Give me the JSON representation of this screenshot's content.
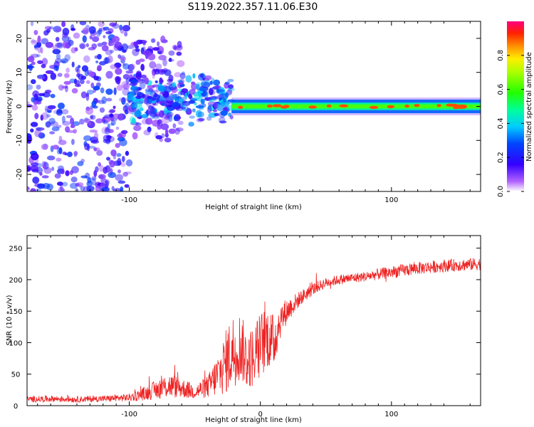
{
  "figure_title": "S119.2022.357.11.06.E30",
  "colors": {
    "snr_line": "#ee2222",
    "axis": "#000000"
  },
  "chart_data": [
    {
      "type": "heatmap",
      "xlabel": "Height of straight line (km)",
      "ylabel": "Frequency (Hz)",
      "xlim": [
        -178,
        168
      ],
      "ylim": [
        -25,
        25
      ],
      "x_ticks": [
        -100,
        0,
        100
      ],
      "x_tick_labels": [
        "-100",
        "",
        "100"
      ],
      "y_ticks": [
        -20,
        -10,
        0,
        10,
        20
      ],
      "y_tick_labels": [
        "-20",
        "-10",
        "0",
        "10",
        "20"
      ],
      "colorbar": {
        "label": "Normalized spectral amplitude",
        "range": [
          0,
          1
        ],
        "ticks": [
          0.0,
          0.2,
          0.4,
          0.6,
          0.8
        ],
        "tick_labels": [
          "0.0",
          "0.2",
          "0.4",
          "0.6",
          "0.8"
        ],
        "colormap": "rainbow"
      },
      "features": [
        {
          "x_range": [
            -178,
            -100
          ],
          "freq_range": [
            -25,
            25
          ],
          "amplitude": 0.2,
          "description": "scattered"
        },
        {
          "x_range": [
            -100,
            -60
          ],
          "freq_range": [
            -10,
            20
          ],
          "amplitude": 0.15,
          "description": "sparse"
        },
        {
          "x_range": [
            -100,
            -22
          ],
          "freq_range": [
            -5,
            10
          ],
          "amplitude": 0.3,
          "description": "band"
        },
        {
          "x_range": [
            -22,
            168
          ],
          "freq_range": [
            -2,
            2
          ],
          "amplitude": 0.55,
          "description": "narrow band"
        }
      ]
    },
    {
      "type": "line",
      "xlabel": "Height of straight line (km)",
      "ylabel": "SNR (10 * v/v)",
      "xlim": [
        -178,
        168
      ],
      "ylim": [
        0,
        270
      ],
      "x_ticks": [
        -100,
        0,
        100
      ],
      "x_tick_labels": [
        "-100",
        "0",
        "100"
      ],
      "y_ticks": [
        0,
        50,
        100,
        150,
        200,
        250
      ],
      "y_tick_labels": [
        "0",
        "50",
        "100",
        "150",
        "200",
        "250"
      ],
      "series": [
        {
          "x": [
            -178,
            -160,
            -140,
            -120,
            -100,
            -90,
            -80,
            -70,
            -60,
            -50,
            -40,
            -30,
            -25,
            -20,
            -15,
            -10,
            -5,
            0,
            5,
            10,
            15,
            20,
            30,
            40,
            50,
            60,
            80,
            100,
            120,
            140,
            168
          ],
          "mean": [
            10,
            11,
            10,
            11,
            13,
            18,
            25,
            32,
            28,
            22,
            30,
            55,
            75,
            90,
            95,
            70,
            80,
            95,
            110,
            100,
            135,
            150,
            170,
            185,
            195,
            200,
            205,
            212,
            218,
            222,
            225
          ],
          "spread": [
            5,
            5,
            5,
            5,
            6,
            10,
            15,
            20,
            16,
            12,
            18,
            40,
            55,
            60,
            55,
            45,
            50,
            55,
            50,
            45,
            30,
            20,
            12,
            10,
            8,
            8,
            8,
            10,
            10,
            10,
            10
          ]
        }
      ]
    }
  ]
}
